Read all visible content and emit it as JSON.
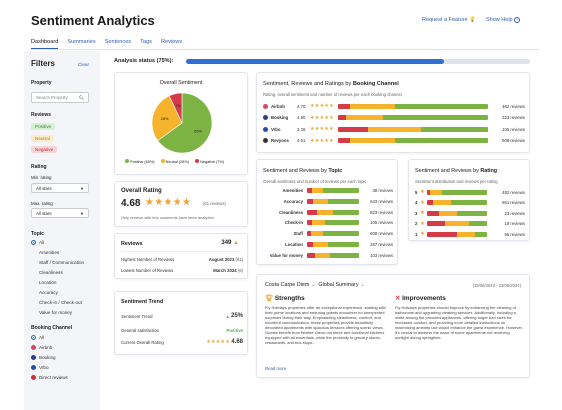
{
  "header": {
    "title": "Sentiment Analytics",
    "request_feature": "Request a Feature",
    "show_help": "Show Help"
  },
  "tabs": [
    "Dashboard",
    "Summaries",
    "Sentences",
    "Tags",
    "Reviews"
  ],
  "filters": {
    "title": "Filters",
    "clear": "Clear",
    "property_label": "Property",
    "property_placeholder": "Search Property",
    "reviews_label": "Reviews",
    "review_tags": [
      "Positive",
      "Neutral",
      "Negative"
    ],
    "rating_label": "Rating",
    "min_rating_label": "Min. rating",
    "min_rating_value": "All stars",
    "max_rating_label": "Max. rating",
    "max_rating_value": "All stars",
    "topic_label": "Topic",
    "topics": [
      "All",
      "Amenities",
      "Staff / Communication",
      "Cleanliness",
      "Location",
      "Accuracy",
      "Check-in / Check-out",
      "Value for money"
    ],
    "booking_label": "Booking Channel",
    "channels": [
      "All",
      "Airbnb",
      "Booking",
      "Vrbo",
      "Direct reviews"
    ]
  },
  "status": {
    "label": "Analysis status (75%):",
    "progress": 0.75
  },
  "overall_sentiment": {
    "title": "Overall Sentiment",
    "slices": [
      {
        "name": "Positive",
        "pct": 65,
        "color": "#7cb342"
      },
      {
        "name": "Neutral",
        "pct": 28,
        "color": "#f7b32b"
      },
      {
        "name": "Negative",
        "pct": 7,
        "color": "#d63a48"
      }
    ],
    "labels": [
      "65%",
      "28%",
      "7%"
    ],
    "legend": [
      "Positive (65%)",
      "Neutral (28%)",
      "Negative (7%)"
    ]
  },
  "overall_rating": {
    "title": "Overall Rating",
    "value": "4.68",
    "reviews": "(61 reviews)",
    "note": "Only reviews with text comments have been analyzed."
  },
  "reviews_card": {
    "title": "Reviews",
    "count": "349",
    "rows": [
      {
        "label": "Highest Number of Reviews",
        "value": "August 2023",
        "extra": "(61)"
      },
      {
        "label": "Lowest Number of Reviews",
        "value": "March 2024",
        "extra": "(6)"
      }
    ]
  },
  "trend": {
    "title": "Sentiment Trend",
    "rows": [
      {
        "label": "Sentiment Trend",
        "value": "25%"
      },
      {
        "label": "General satisfaction",
        "value": "Positive"
      },
      {
        "label": "Current Overall Rating",
        "value": "4.68"
      }
    ]
  },
  "channels_card": {
    "title_prefix": "Sentiment, Reviews and Ratings by ",
    "title_bold": "Booking Channel",
    "subtitle": "Rating, overall sentiment and number of reviews per each booking channel",
    "rows": [
      {
        "name": "Airbnb",
        "rating": "4.70",
        "reviews": "482 reviews",
        "dot": "#e0445a",
        "mix": [
          0.62,
          0.3,
          0.08
        ]
      },
      {
        "name": "Booking",
        "rating": "4.80",
        "reviews": "323 reviews",
        "dot": "#2b3f8f",
        "mix": [
          0.7,
          0.25,
          0.05
        ]
      },
      {
        "name": "Vrbo",
        "rating": "3.28",
        "reviews": "105 reviews",
        "dot": "#2550a8",
        "mix": [
          0.45,
          0.35,
          0.2
        ]
      },
      {
        "name": "Revyoos",
        "rating": "4.51",
        "reviews": "608 reviews",
        "dot": "#333333",
        "mix": [
          0.62,
          0.3,
          0.08
        ]
      }
    ]
  },
  "topic_card": {
    "title_prefix": "Sentiment and Reviews by ",
    "title_bold": "Topic",
    "subtitle": "Overall sentiment and number of reviews per each topic",
    "rows": [
      {
        "name": "Amenities",
        "reviews": "38 reviews",
        "mix": [
          0.7,
          0.2,
          0.1
        ]
      },
      {
        "name": "Accuracy",
        "reviews": "643 reviews",
        "mix": [
          0.6,
          0.28,
          0.12
        ]
      },
      {
        "name": "Cleanliness",
        "reviews": "823 reviews",
        "mix": [
          0.5,
          0.3,
          0.2
        ]
      },
      {
        "name": "Check-in",
        "reviews": "105 reviews",
        "mix": [
          0.65,
          0.25,
          0.1
        ]
      },
      {
        "name": "Staff",
        "reviews": "608 reviews",
        "mix": [
          0.7,
          0.22,
          0.08
        ]
      },
      {
        "name": "Location",
        "reviews": "287 reviews",
        "mix": [
          0.6,
          0.28,
          0.12
        ]
      },
      {
        "name": "Value for money",
        "reviews": "103 reviews",
        "mix": [
          0.55,
          0.3,
          0.15
        ]
      }
    ]
  },
  "rating_card": {
    "title_prefix": "Sentiment and Reviews by ",
    "title_bold": "Rating",
    "subtitle": "Sentiment distribution and reviews per rating",
    "rows": [
      {
        "stars": "5",
        "reviews": "482 reviews",
        "mix": [
          0.75,
          0.2,
          0.05
        ]
      },
      {
        "stars": "4",
        "reviews": "651 reviews",
        "mix": [
          0.6,
          0.3,
          0.1
        ]
      },
      {
        "stars": "3",
        "reviews": "23 reviews",
        "mix": [
          0.5,
          0.3,
          0.2
        ]
      },
      {
        "stars": "2",
        "reviews": "19 reviews",
        "mix": [
          0.3,
          0.4,
          0.3
        ]
      },
      {
        "stars": "1",
        "reviews": "66 reviews",
        "mix": [
          0.2,
          0.3,
          0.5
        ]
      }
    ]
  },
  "summary_card": {
    "property": "Costa Carpe Diem",
    "scope": "Global Summary",
    "dates": "(19/06/2023 - 23/06/2024)",
    "strengths_title": "Strengths",
    "strengths_text": "Fly Holidays properties offer an exceptional experience, starting with their prime locations and enduring guests encounter no unexpected surprises during their stay. Emphasizing cleanliness, comfort, and excellent communication, these properties provide beautifully decorated apartments with spacious terraces offering scenic views. Guests benefit from flexible check-out times and functional kitchens equipped with all essentials, while the proximity to grocery stores, restaurants, and bus stops...",
    "read_more": "Read more",
    "improvements_title": "Improvements",
    "improvements_text": "Fly Holidays properties should improve by enhancing the cleaning of bathrooms and upgrading cleaning services. Additionally, including a white among the provided appliances, offering larger bed sizes for increased comfort, and providing more detailed instructions on maximizing amenity use would enhance the guest experience. However, it's crucial to address the issue of some apartments not receiving sunlight during springtime."
  },
  "colors": {
    "positive": "#7cb342",
    "neutral": "#f7b32b",
    "negative": "#d63a48",
    "accent": "#2f5fb3"
  }
}
